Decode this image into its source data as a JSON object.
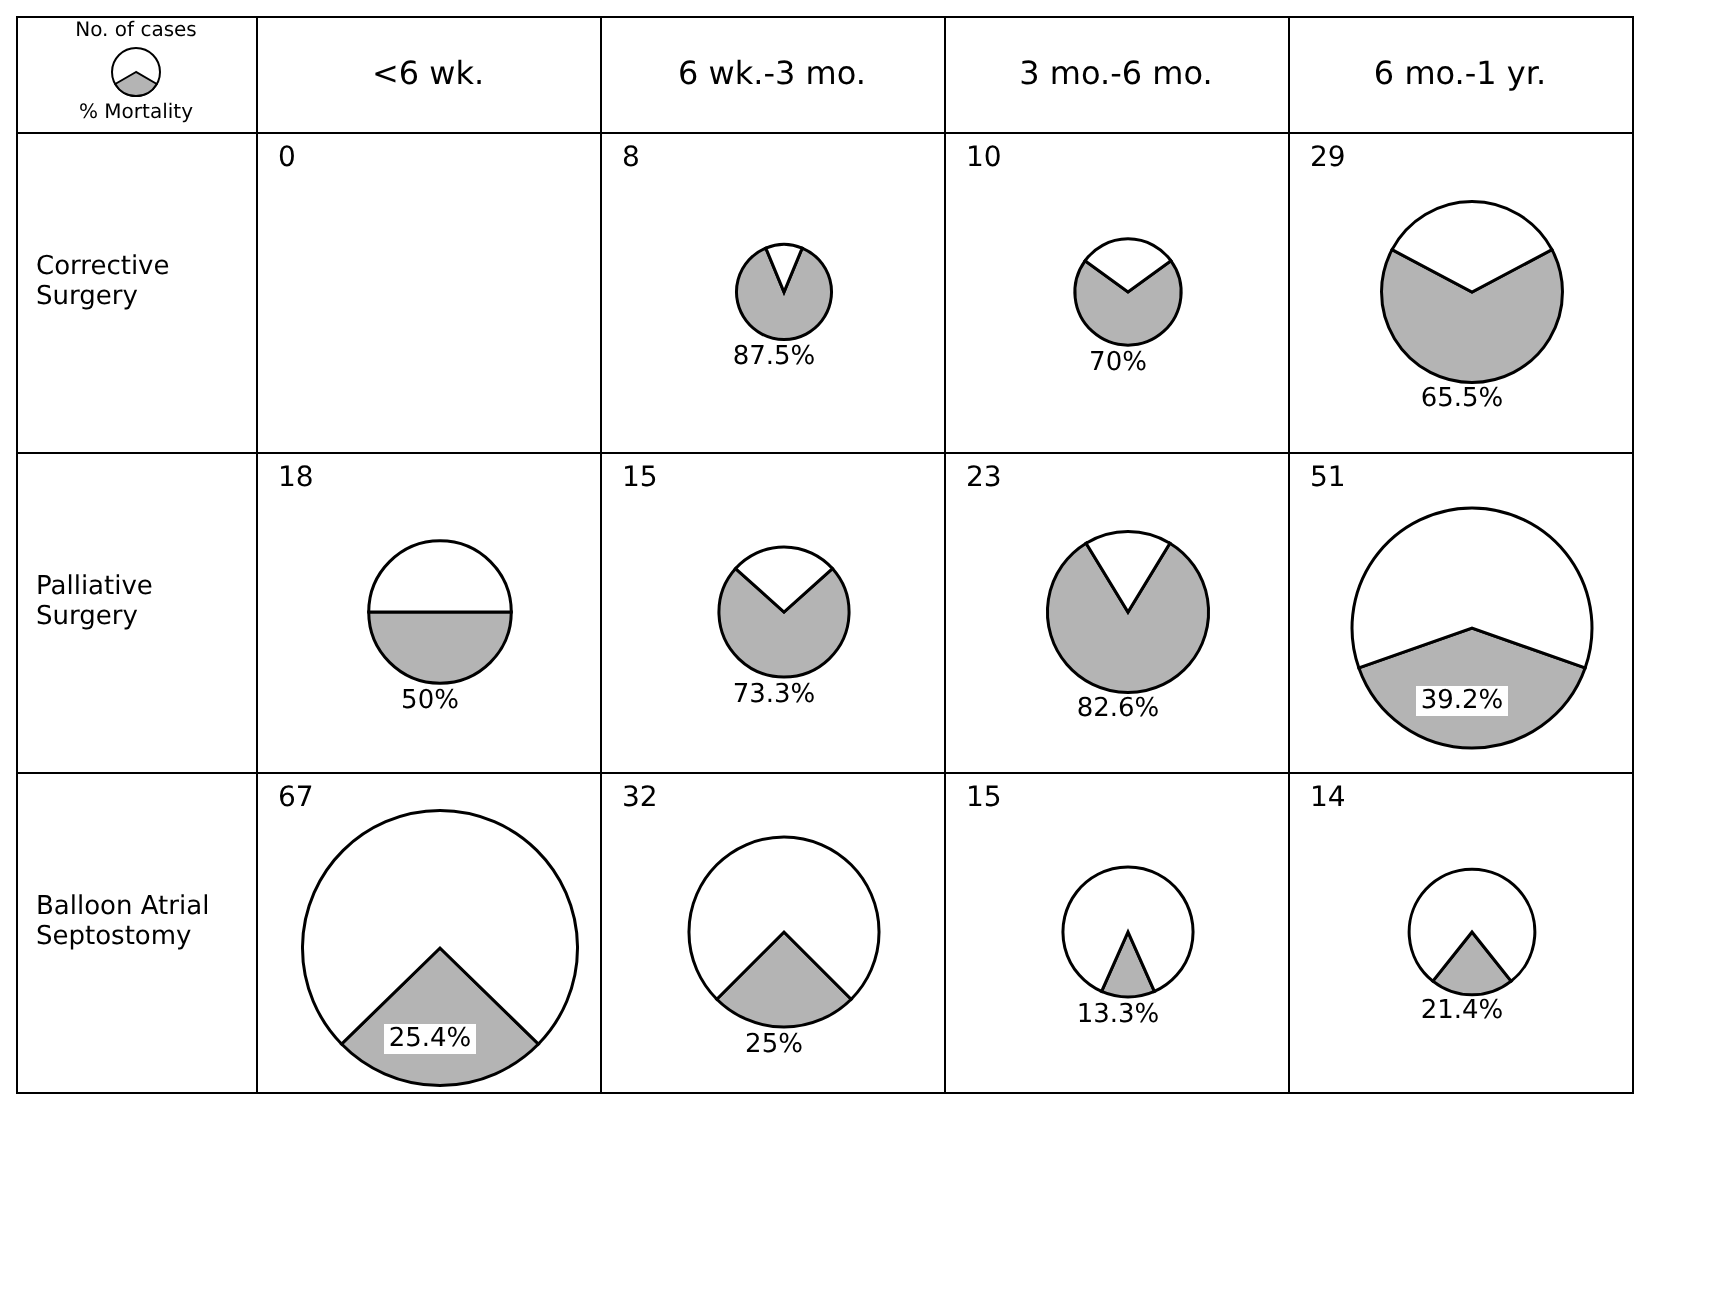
{
  "chart_data": [
    {
      "type": "other",
      "legend_title": "No. of cases",
      "annotations": [
        "% Mortality"
      ],
      "categories": [
        "<6 wk.",
        "6 wk.-3 mo.",
        "3 mo.-6 mo.",
        "6 mo.-1 yr."
      ],
      "y_categories": [
        "Corrective Surgery",
        "Palliative Surgery",
        "Balloon Atrial Septostomy"
      ]
    },
    {
      "type": "other",
      "title": "0"
    },
    {
      "type": "pie",
      "title": "8",
      "categories": [
        null,
        null
      ],
      "values": [
        87.5,
        12.5
      ],
      "colors": [
        "#b4b4b4",
        "#ffffff"
      ],
      "value_labels": [
        "87.5%",
        null
      ]
    },
    {
      "type": "pie",
      "title": "10",
      "categories": [
        null,
        null
      ],
      "values": [
        70,
        30
      ],
      "colors": [
        "#b4b4b4",
        "#ffffff"
      ],
      "value_labels": [
        "70%",
        null
      ]
    },
    {
      "type": "pie",
      "title": "29",
      "categories": [
        null,
        null
      ],
      "values": [
        65.5,
        34.5
      ],
      "colors": [
        "#b4b4b4",
        "#ffffff"
      ],
      "value_labels": [
        "65.5%",
        null
      ]
    },
    {
      "type": "pie",
      "title": "18",
      "categories": [
        null,
        null
      ],
      "values": [
        50,
        50
      ],
      "colors": [
        "#b4b4b4",
        "#ffffff"
      ],
      "value_labels": [
        "50%",
        null
      ]
    },
    {
      "type": "pie",
      "title": "15",
      "categories": [
        null,
        null
      ],
      "values": [
        73.3,
        26.7
      ],
      "colors": [
        "#b4b4b4",
        "#ffffff"
      ],
      "value_labels": [
        "73.3%",
        null
      ]
    },
    {
      "type": "pie",
      "title": "23",
      "categories": [
        null,
        null
      ],
      "values": [
        82.6,
        17.4
      ],
      "colors": [
        "#b4b4b4",
        "#ffffff"
      ],
      "value_labels": [
        "82.6%",
        null
      ]
    },
    {
      "type": "pie",
      "title": "51",
      "categories": [
        null,
        null
      ],
      "values": [
        39.2,
        60.8
      ],
      "colors": [
        "#b4b4b4",
        "#ffffff"
      ],
      "value_labels": [
        "39.2%",
        null
      ]
    },
    {
      "type": "pie",
      "title": "67",
      "categories": [
        null,
        null
      ],
      "values": [
        25.4,
        74.6
      ],
      "colors": [
        "#b4b4b4",
        "#ffffff"
      ],
      "value_labels": [
        "25.4%",
        null
      ]
    },
    {
      "type": "pie",
      "title": "32",
      "categories": [
        null,
        null
      ],
      "values": [
        25,
        75
      ],
      "colors": [
        "#b4b4b4",
        "#ffffff"
      ],
      "value_labels": [
        "25%",
        null
      ]
    },
    {
      "type": "pie",
      "title": "15",
      "categories": [
        null,
        null
      ],
      "values": [
        13.3,
        86.7
      ],
      "colors": [
        "#b4b4b4",
        "#ffffff"
      ],
      "value_labels": [
        "13.3%",
        null
      ]
    },
    {
      "type": "pie",
      "title": "14",
      "categories": [
        null,
        null
      ],
      "values": [
        21.4,
        78.6
      ],
      "colors": [
        "#b4b4b4",
        "#ffffff"
      ],
      "value_labels": [
        "21.4%",
        null
      ]
    }
  ]
}
